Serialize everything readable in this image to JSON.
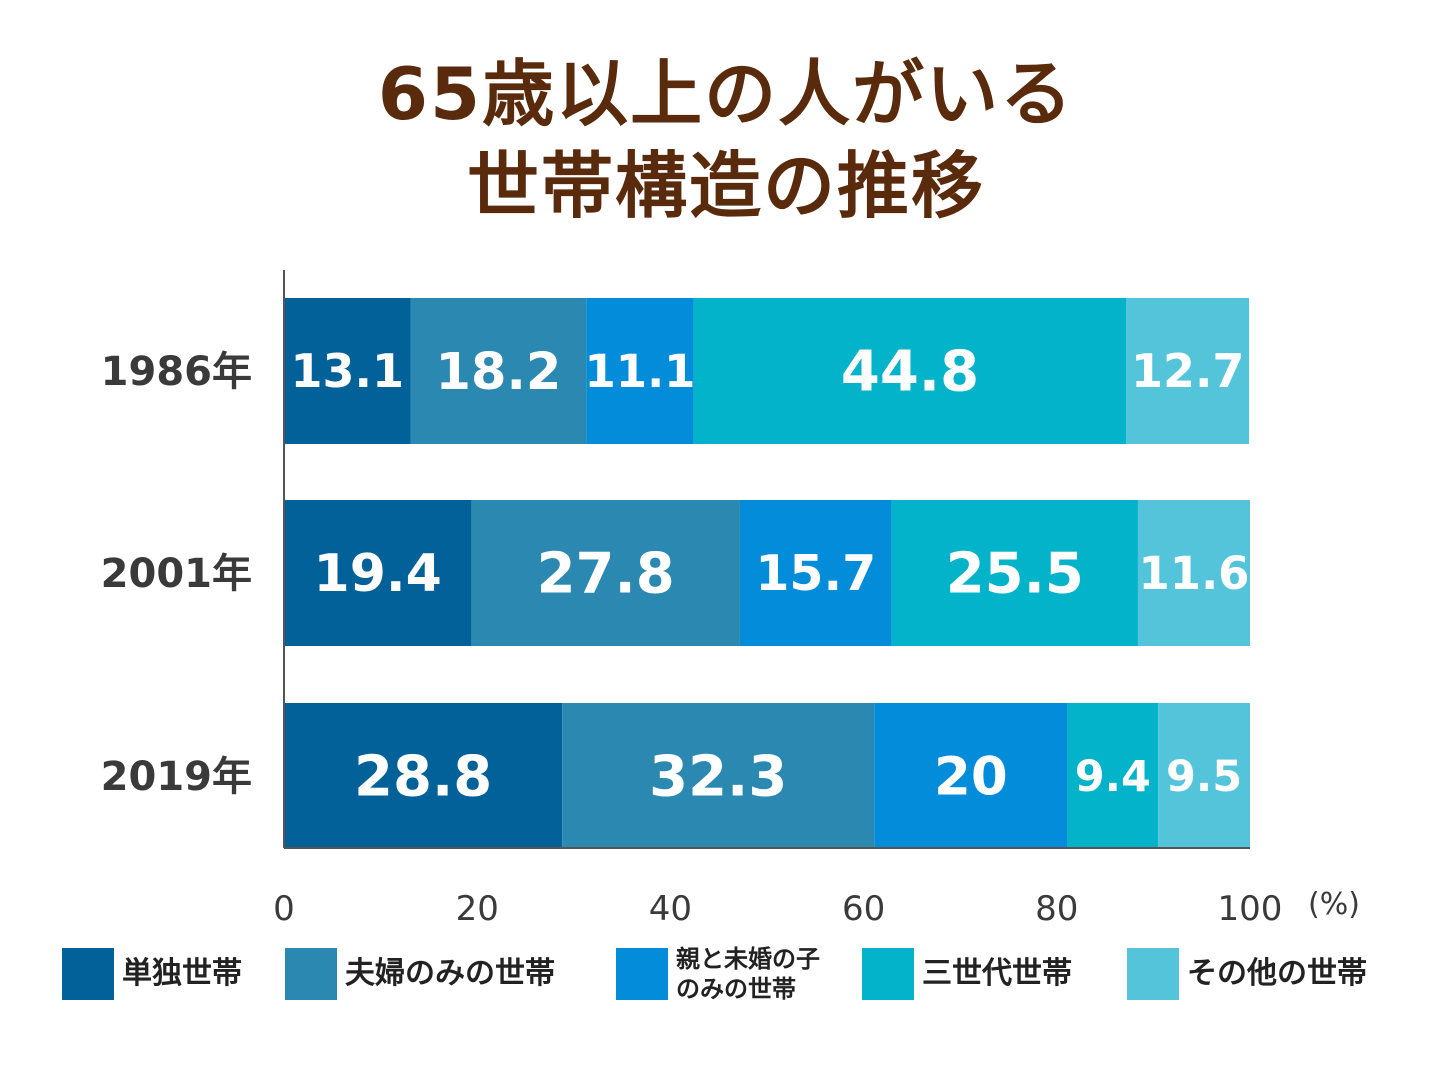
{
  "title_lines": [
    "65歳以上の人がいる",
    "世帯構造の推移"
  ],
  "chart_data": {
    "type": "bar",
    "orientation": "horizontal",
    "stacked": true,
    "categories": [
      "1986年",
      "2001年",
      "2019年"
    ],
    "series": [
      {
        "name": "単独世帯",
        "color": "#03619a",
        "values": [
          13.1,
          19.4,
          28.8
        ]
      },
      {
        "name": "夫婦のみの世帯",
        "color": "#2b89b1",
        "values": [
          18.2,
          27.8,
          32.3
        ]
      },
      {
        "name": "親と未婚の子のみの世帯",
        "color": "#038cda",
        "values": [
          11.1,
          15.7,
          20
        ]
      },
      {
        "name": "三世代世帯",
        "color": "#03b3c9",
        "values": [
          44.8,
          25.5,
          9.4
        ]
      },
      {
        "name": "その他の世帯",
        "color": "#54c4db",
        "values": [
          12.7,
          11.6,
          9.5
        ]
      }
    ],
    "xlim": [
      0,
      100
    ],
    "xticks": [
      0,
      20,
      40,
      60,
      80,
      100
    ],
    "xunit": "(%)",
    "legend_position": "bottom",
    "grid": false
  },
  "legend_labels": {
    "single": "単独世帯",
    "couple": "夫婦のみの世帯",
    "parent_child_line1": "親と未婚の子",
    "parent_child_line2": "のみの世帯",
    "three_gen": "三世代世帯",
    "other": "その他の世帯"
  }
}
